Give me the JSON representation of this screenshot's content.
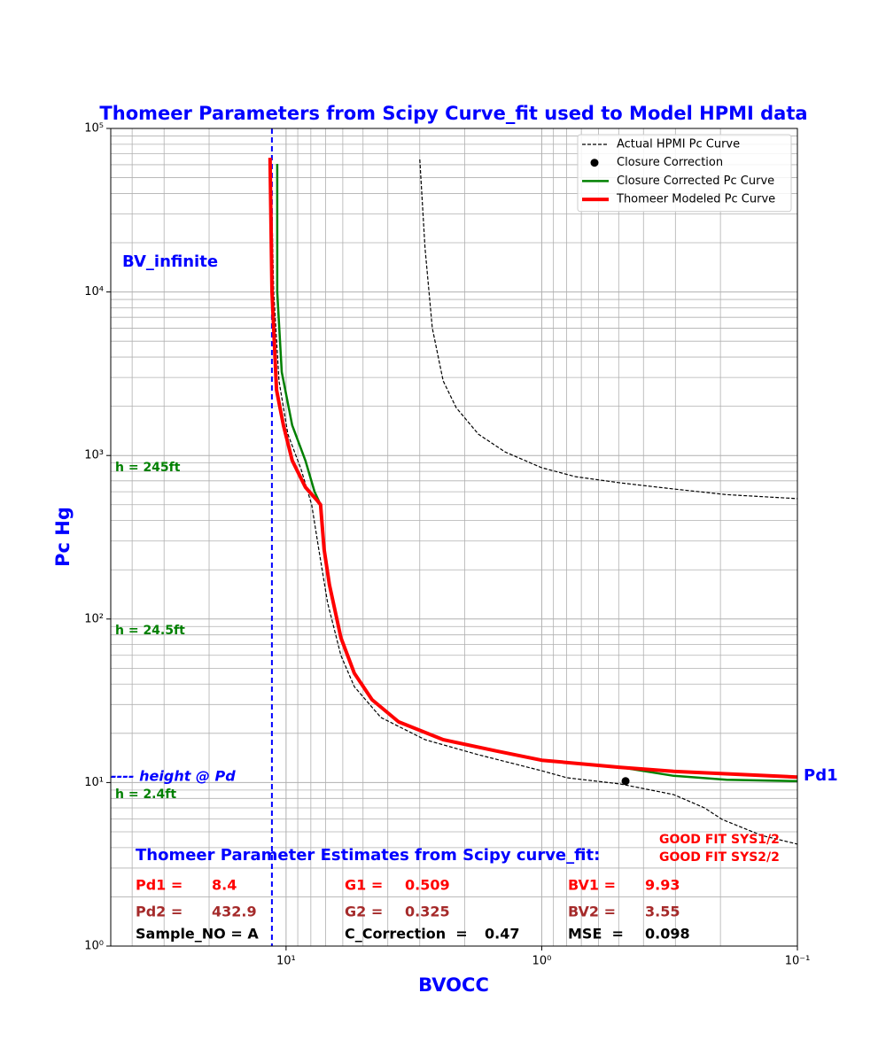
{
  "chart_data": {
    "type": "line",
    "title": "Thomeer Parameters from Scipy Curve_fit used to Model HPMI data",
    "x_label": "BVOCC",
    "y_label": "Pc Hg",
    "log_x": true,
    "log_y": true,
    "grid": true,
    "minor_grid": true,
    "legend": "upper right",
    "xlim": [
      48.5,
      0.1
    ],
    "ylim": [
      1,
      100000
    ],
    "xticks": [
      {
        "value": 10,
        "label": "10¹"
      },
      {
        "value": 1,
        "label": "10⁰"
      },
      {
        "value": 0.1,
        "label": "10⁻¹"
      }
    ],
    "yticks": [
      {
        "value": 1,
        "label": "10⁰"
      },
      {
        "value": 10,
        "label": "10¹"
      },
      {
        "value": 100,
        "label": "10²"
      },
      {
        "value": 1000,
        "label": "10³"
      },
      {
        "value": 10000,
        "label": "10⁴"
      },
      {
        "value": 100000,
        "label": "10⁵"
      }
    ],
    "vlines": [
      {
        "x": 11.36,
        "color": "#0000ff"
      }
    ],
    "series": [
      {
        "name": "Actual HPMI Pc Curve",
        "type": "line",
        "color": "#000000",
        "dash": true,
        "width": 1.2,
        "x": [
          3.0,
          2.86,
          2.68,
          2.43,
          2.16,
          1.77,
          1.39,
          1.0,
          0.738,
          0.493,
          0.305,
          0.189,
          0.1,
          null,
          11.46,
          11.18,
          10.66,
          9.84,
          8.73,
          7.94,
          7.45,
          6.88,
          6.1,
          5.41,
          4.26,
          2.86,
          1.77,
          1.0,
          0.796,
          0.493,
          0.305,
          0.231,
          0.197,
          0.138,
          0.1
        ],
        "values": [
          64600,
          18600,
          6030,
          2860,
          1960,
          1350,
          1050,
          842,
          742,
          680,
          624,
          576,
          545,
          null,
          60700,
          10000,
          2860,
          1352,
          821,
          499,
          267,
          126,
          59.8,
          38.6,
          25,
          18.3,
          14.8,
          11.8,
          10.7,
          9.8,
          8.44,
          7.0,
          5.95,
          4.75,
          4.2
        ]
      },
      {
        "name": "Closure Correction",
        "type": "scatter",
        "color": "#000000",
        "x": [
          0.47
        ],
        "values": [
          10.2
        ]
      },
      {
        "name": "Closure Corrected Pc Curve",
        "type": "line",
        "color": "#008000",
        "width": 2.5,
        "x": [
          10.83,
          10.83,
          10.4,
          9.46,
          8.4,
          7.74,
          7.33,
          7.1,
          6.77,
          6.1,
          5.41,
          4.61,
          3.63,
          2.43,
          1.51,
          1.0,
          0.493,
          0.305,
          0.189,
          0.1
        ],
        "values": [
          60700,
          10000,
          3240,
          1531,
          931,
          601,
          500,
          267,
          162,
          76.8,
          46.6,
          32.1,
          23.5,
          18.3,
          15.6,
          13.7,
          12.4,
          11.0,
          10.4,
          10.2
        ]
      },
      {
        "name": "Thomeer Modeled Pc Curve",
        "type": "line",
        "color": "#ff0000",
        "width": 4,
        "x": [
          11.55,
          11.35,
          10.9,
          10.24,
          9.46,
          8.4,
          7.56,
          7.33,
          7.1,
          6.77,
          6.1,
          5.41,
          4.61,
          3.63,
          2.43,
          1.51,
          1.0,
          0.493,
          0.305,
          0.1
        ],
        "values": [
          66200,
          10000,
          2520,
          1531,
          931,
          640,
          531,
          500,
          267,
          162,
          76.8,
          46.6,
          32.1,
          23.5,
          18.3,
          15.6,
          13.7,
          12.4,
          11.7,
          10.8
        ]
      }
    ],
    "annotations": [
      {
        "text": "BV_infinite",
        "color": "#0000ff"
      },
      {
        "text": "h = 245ft",
        "color": "#008000"
      },
      {
        "text": "h = 24.5ft",
        "color": "#008000"
      },
      {
        "text": "h = 2.4ft",
        "color": "#008000"
      },
      {
        "text": "---- height @ Pd",
        "color": "#0000ff"
      },
      {
        "text": "Pd1",
        "color": "#0000ff"
      },
      {
        "text": "Thomeer Parameter Estimates from Scipy curve_fit:",
        "color": "#0000ff"
      },
      {
        "text": "GOOD FIT SYS1/2",
        "color": "#ff0000"
      },
      {
        "text": "GOOD FIT SYS2/2",
        "color": "#ff0000"
      },
      {
        "text": "Pd1 =",
        "color": "#ff0000"
      },
      {
        "text": "8.4",
        "color": "#ff0000"
      },
      {
        "text": "G1 =",
        "color": "#ff0000"
      },
      {
        "text": "0.509",
        "color": "#ff0000"
      },
      {
        "text": "BV1 =",
        "color": "#ff0000"
      },
      {
        "text": "9.93",
        "color": "#ff0000"
      },
      {
        "text": "Pd2 =",
        "color": "#a52a2a"
      },
      {
        "text": "432.9",
        "color": "#a52a2a"
      },
      {
        "text": "G2 =",
        "color": "#a52a2a"
      },
      {
        "text": "0.325",
        "color": "#a52a2a"
      },
      {
        "text": "BV2 =",
        "color": "#a52a2a"
      },
      {
        "text": "3.55",
        "color": "#a52a2a"
      },
      {
        "text": "Sample_NO = A",
        "color": "#000000"
      },
      {
        "text": "C_Correction  =",
        "color": "#000000"
      },
      {
        "text": "0.47",
        "color": "#000000"
      },
      {
        "text": "MSE  =",
        "color": "#000000"
      },
      {
        "text": "0.098",
        "color": "#000000"
      }
    ]
  }
}
